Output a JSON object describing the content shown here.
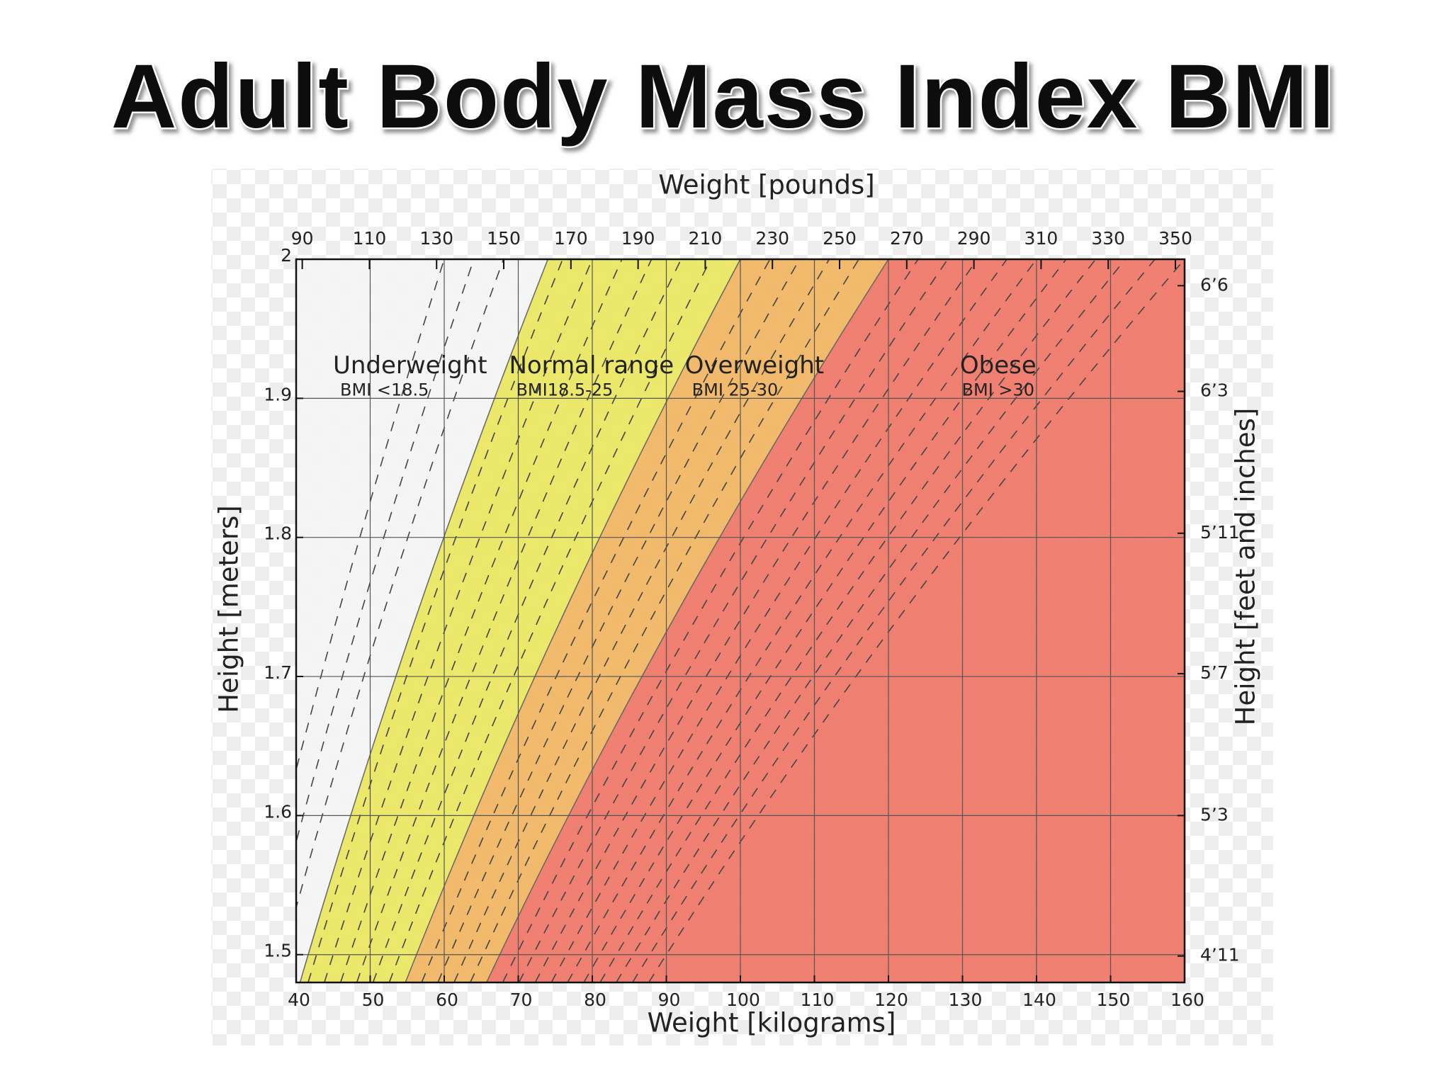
{
  "chart_data": {
    "type": "bmi_zones",
    "title": "Adult Body Mass Index  BMI",
    "x_label": "Weight [kilograms]",
    "x2_label": "Weight [pounds]",
    "y_label": "Height [meters]",
    "y2_label": "Height [feet and inches]",
    "xlim": [
      40,
      160
    ],
    "xticks": [
      40,
      50,
      60,
      70,
      80,
      90,
      100,
      110,
      120,
      130,
      140,
      150,
      160
    ],
    "x2lim": [
      88.18,
      352.74
    ],
    "x2ticks": [
      90,
      110,
      130,
      150,
      170,
      190,
      210,
      230,
      250,
      270,
      290,
      310,
      330,
      350
    ],
    "ylim": [
      1.48,
      2
    ],
    "yticks": [
      2,
      1.9,
      1.8,
      1.7,
      1.6,
      1.5
    ],
    "y2lim": [
      1.48,
      2
    ],
    "y2ticks": [
      {
        "value": 1.981,
        "label": "6’6"
      },
      {
        "value": 1.905,
        "label": "6’3"
      },
      {
        "value": 1.803,
        "label": "5’11"
      },
      {
        "value": 1.702,
        "label": "5’7"
      },
      {
        "value": 1.6,
        "label": "5’3"
      },
      {
        "value": 1.499,
        "label": "4’11"
      }
    ],
    "grid": true,
    "thresholds": [
      18.5,
      25,
      30
    ],
    "zones": [
      {
        "name": "Underweight",
        "note": "BMI <18.5",
        "color": "#f4f4f4"
      },
      {
        "name": "Normal range",
        "note": "BMI18.5-25",
        "color": "#e9e65c"
      },
      {
        "name": "Overweight",
        "note": "BMI 25-30",
        "color": "#f0b25c"
      },
      {
        "name": "Obese",
        "note": "BMI >30",
        "color": "#ee7263"
      }
    ],
    "isolines": [
      15,
      16,
      17,
      19,
      20,
      21,
      22,
      23,
      24,
      26,
      27,
      28,
      29,
      31,
      32,
      33,
      34,
      35,
      36,
      37,
      38,
      39,
      40
    ]
  }
}
